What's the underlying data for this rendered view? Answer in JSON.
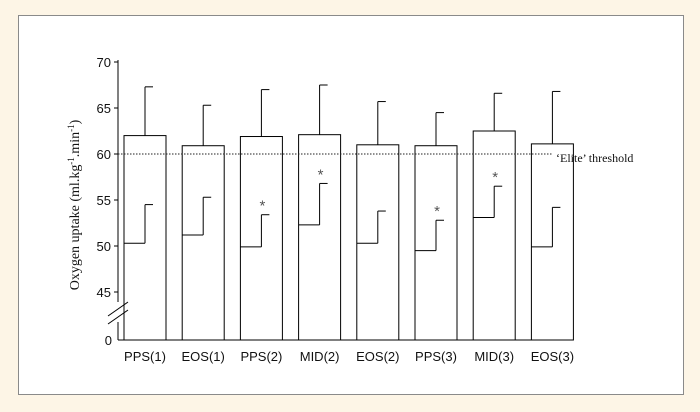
{
  "chart_data": {
    "type": "bar",
    "ylabel_main": "Oxygen uptake (ml.kg",
    "ylabel_sup1": "-1",
    "ylabel_mid": ".min",
    "ylabel_sup2": "-1",
    "ylabel_end": ")",
    "y_ticks": [
      "45",
      "50",
      "55",
      "60",
      "65",
      "70"
    ],
    "y_zero": "0",
    "ylim": [
      43,
      70
    ],
    "categories": [
      "PPS(1)",
      "EOS(1)",
      "PPS(2)",
      "MID(2)",
      "EOS(2)",
      "PPS(3)",
      "MID(3)",
      "EOS(3)"
    ],
    "series": [
      {
        "values": [
          62.0,
          60.9,
          61.9,
          62.1,
          61.0,
          60.9,
          62.5,
          61.1
        ],
        "error": [
          5.3,
          4.4,
          5.1,
          5.4,
          4.7,
          3.6,
          4.1,
          5.7
        ]
      },
      {
        "values": [
          50.3,
          51.2,
          49.9,
          52.3,
          50.3,
          49.5,
          53.1,
          49.9
        ],
        "error": [
          4.2,
          4.1,
          3.5,
          4.5,
          3.5,
          3.3,
          3.4,
          4.3
        ]
      }
    ],
    "significance_marker": "*",
    "significant": [
      false,
      false,
      true,
      true,
      false,
      true,
      true,
      false
    ],
    "threshold": {
      "value": 60,
      "label": "‘Elite’ threshold"
    },
    "axis_break": true,
    "grid": false
  }
}
